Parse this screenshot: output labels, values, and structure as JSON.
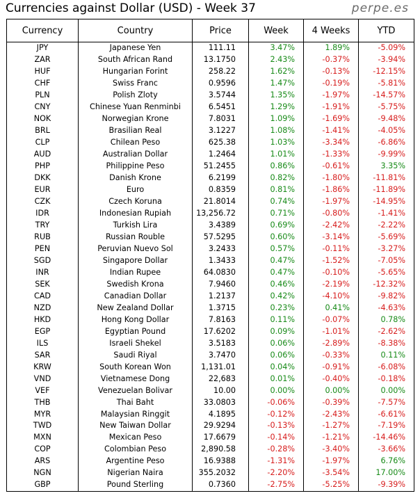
{
  "header": {
    "title": "Currencies against Dollar (USD) - Week 37",
    "brand": "perpe.es"
  },
  "columns": [
    "Currency",
    "Country",
    "Price",
    "Week",
    "4 Weeks",
    "YTD"
  ],
  "colors": {
    "positive": "#178a17",
    "negative": "#d71c1c"
  },
  "rows": [
    [
      "JPY",
      "Japanese Yen",
      "111.11",
      "3.47%",
      "1.89%",
      "-5.09%"
    ],
    [
      "ZAR",
      "South African Rand",
      "13.1750",
      "2.43%",
      "-0.37%",
      "-3.94%"
    ],
    [
      "HUF",
      "Hungarian Forint",
      "258.22",
      "1.62%",
      "-0.13%",
      "-12.15%"
    ],
    [
      "CHF",
      "Swiss Franc",
      "0.9596",
      "1.47%",
      "-0.19%",
      "-5.81%"
    ],
    [
      "PLN",
      "Polish Zloty",
      "3.5744",
      "1.35%",
      "-1.97%",
      "-14.57%"
    ],
    [
      "CNY",
      "Chinese Yuan Renminbi",
      "6.5451",
      "1.29%",
      "-1.91%",
      "-5.75%"
    ],
    [
      "NOK",
      "Norwegian Krone",
      "7.8031",
      "1.09%",
      "-1.69%",
      "-9.48%"
    ],
    [
      "BRL",
      "Brasilian Real",
      "3.1227",
      "1.08%",
      "-1.41%",
      "-4.05%"
    ],
    [
      "CLP",
      "Chilean Peso",
      "625.38",
      "1.03%",
      "-3.34%",
      "-6.86%"
    ],
    [
      "AUD",
      "Australian Dollar",
      "1.2464",
      "1.01%",
      "-1.33%",
      "-9.99%"
    ],
    [
      "PHP",
      "Philippine Peso",
      "51.2455",
      "0.86%",
      "-0.61%",
      "3.35%"
    ],
    [
      "DKK",
      "Danish Krone",
      "6.2199",
      "0.82%",
      "-1.80%",
      "-11.81%"
    ],
    [
      "EUR",
      "Euro",
      "0.8359",
      "0.81%",
      "-1.86%",
      "-11.89%"
    ],
    [
      "CZK",
      "Czech Koruna",
      "21.8014",
      "0.74%",
      "-1.97%",
      "-14.95%"
    ],
    [
      "IDR",
      "Indonesian Rupiah",
      "13,256.72",
      "0.71%",
      "-0.80%",
      "-1.41%"
    ],
    [
      "TRY",
      "Turkish Lira",
      "3.4389",
      "0.69%",
      "-2.42%",
      "-2.22%"
    ],
    [
      "RUB",
      "Russian Rouble",
      "57.5295",
      "0.60%",
      "-3.14%",
      "-5.69%"
    ],
    [
      "PEN",
      "Peruvian Nuevo Sol",
      "3.2433",
      "0.57%",
      "-0.11%",
      "-3.27%"
    ],
    [
      "SGD",
      "Singapore Dollar",
      "1.3433",
      "0.47%",
      "-1.52%",
      "-7.05%"
    ],
    [
      "INR",
      "Indian Rupee",
      "64.0830",
      "0.47%",
      "-0.10%",
      "-5.65%"
    ],
    [
      "SEK",
      "Swedish Krona",
      "7.9460",
      "0.46%",
      "-2.19%",
      "-12.32%"
    ],
    [
      "CAD",
      "Canadian Dollar",
      "1.2137",
      "0.42%",
      "-4.10%",
      "-9.82%"
    ],
    [
      "NZD",
      "New Zealand Dollar",
      "1.3715",
      "0.23%",
      "0.41%",
      "-4.63%"
    ],
    [
      "HKD",
      "Hong Kong Dollar",
      "7.8163",
      "0.11%",
      "-0.07%",
      "0.78%"
    ],
    [
      "EGP",
      "Egyptian Pound",
      "17.6202",
      "0.09%",
      "-1.01%",
      "-2.62%"
    ],
    [
      "ILS",
      "Israeli Shekel",
      "3.5183",
      "0.06%",
      "-2.89%",
      "-8.38%"
    ],
    [
      "SAR",
      "Saudi Riyal",
      "3.7470",
      "0.06%",
      "-0.33%",
      "0.11%"
    ],
    [
      "KRW",
      "South Korean Won",
      "1,131.01",
      "0.04%",
      "-0.91%",
      "-6.08%"
    ],
    [
      "VND",
      "Vietnamese Dong",
      "22,683",
      "0.01%",
      "-0.40%",
      "-0.18%"
    ],
    [
      "VEF",
      "Venezuelan Bolivar",
      "10.00",
      "0.00%",
      "0.00%",
      "0.00%"
    ],
    [
      "THB",
      "Thai Baht",
      "33.0803",
      "-0.06%",
      "-0.39%",
      "-7.57%"
    ],
    [
      "MYR",
      "Malaysian Ringgit",
      "4.1895",
      "-0.12%",
      "-2.43%",
      "-6.61%"
    ],
    [
      "TWD",
      "New Taiwan Dollar",
      "29.9294",
      "-0.13%",
      "-1.27%",
      "-7.19%"
    ],
    [
      "MXN",
      "Mexican Peso",
      "17.6679",
      "-0.14%",
      "-1.21%",
      "-14.46%"
    ],
    [
      "COP",
      "Colombian Peso",
      "2,890.58",
      "-0.28%",
      "-3.40%",
      "-3.66%"
    ],
    [
      "ARS",
      "Argentine Peso",
      "16.9388",
      "-1.31%",
      "-1.97%",
      "6.76%"
    ],
    [
      "NGN",
      "Nigerian Naira",
      "355.2032",
      "-2.20%",
      "-3.54%",
      "17.00%"
    ],
    [
      "GBP",
      "Pound Sterling",
      "0.7360",
      "-2.75%",
      "-5.25%",
      "-9.39%"
    ]
  ]
}
